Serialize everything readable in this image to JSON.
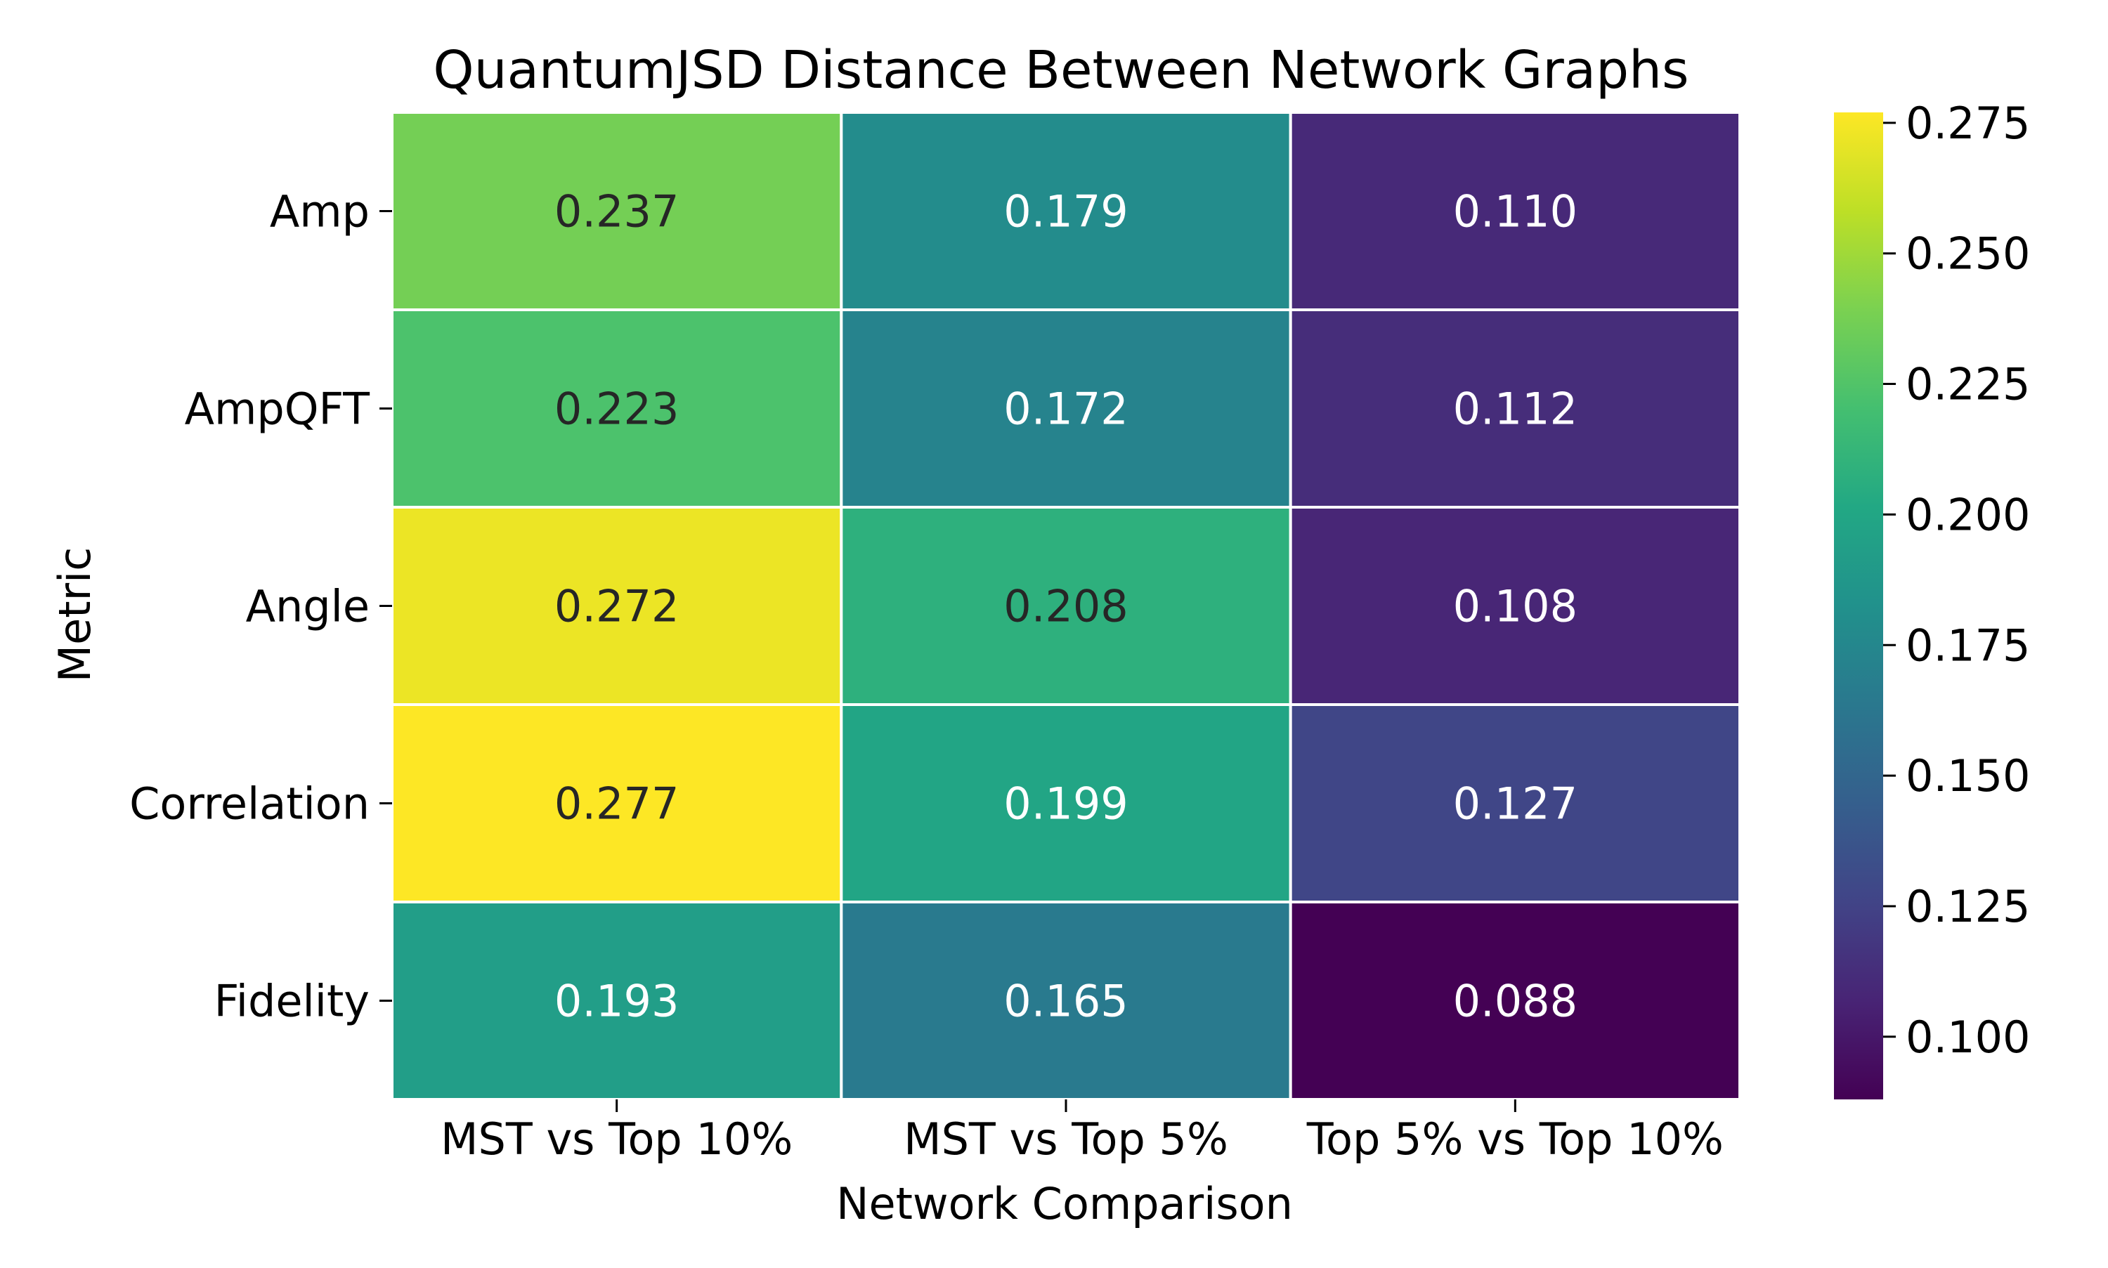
{
  "chart_data": {
    "type": "heatmap",
    "title": "QuantumJSD Distance Between Network Graphs",
    "xlabel": "Network Comparison",
    "ylabel": "Metric",
    "x_categories": [
      "MST vs Top 10%",
      "MST vs Top 5%",
      "Top 5% vs Top 10%"
    ],
    "y_categories": [
      "Amp",
      "AmpQFT",
      "Angle",
      "Correlation",
      "Fidelity"
    ],
    "values": [
      [
        0.237,
        0.179,
        0.11
      ],
      [
        0.223,
        0.172,
        0.112
      ],
      [
        0.272,
        0.208,
        0.108
      ],
      [
        0.277,
        0.199,
        0.127
      ],
      [
        0.193,
        0.165,
        0.088
      ]
    ],
    "value_labels": [
      [
        "0.237",
        "0.179",
        "0.110"
      ],
      [
        "0.223",
        "0.172",
        "0.112"
      ],
      [
        "0.272",
        "0.208",
        "0.108"
      ],
      [
        "0.277",
        "0.199",
        "0.127"
      ],
      [
        "0.193",
        "0.165",
        "0.088"
      ]
    ],
    "colormap": "viridis",
    "color_range": [
      0.088,
      0.277
    ],
    "colorbar_ticks": [
      0.1,
      0.125,
      0.15,
      0.175,
      0.2,
      0.225,
      0.25,
      0.275
    ],
    "colorbar_tick_labels": [
      "0.100",
      "0.125",
      "0.150",
      "0.175",
      "0.200",
      "0.225",
      "0.250",
      "0.275"
    ],
    "grid": false
  }
}
